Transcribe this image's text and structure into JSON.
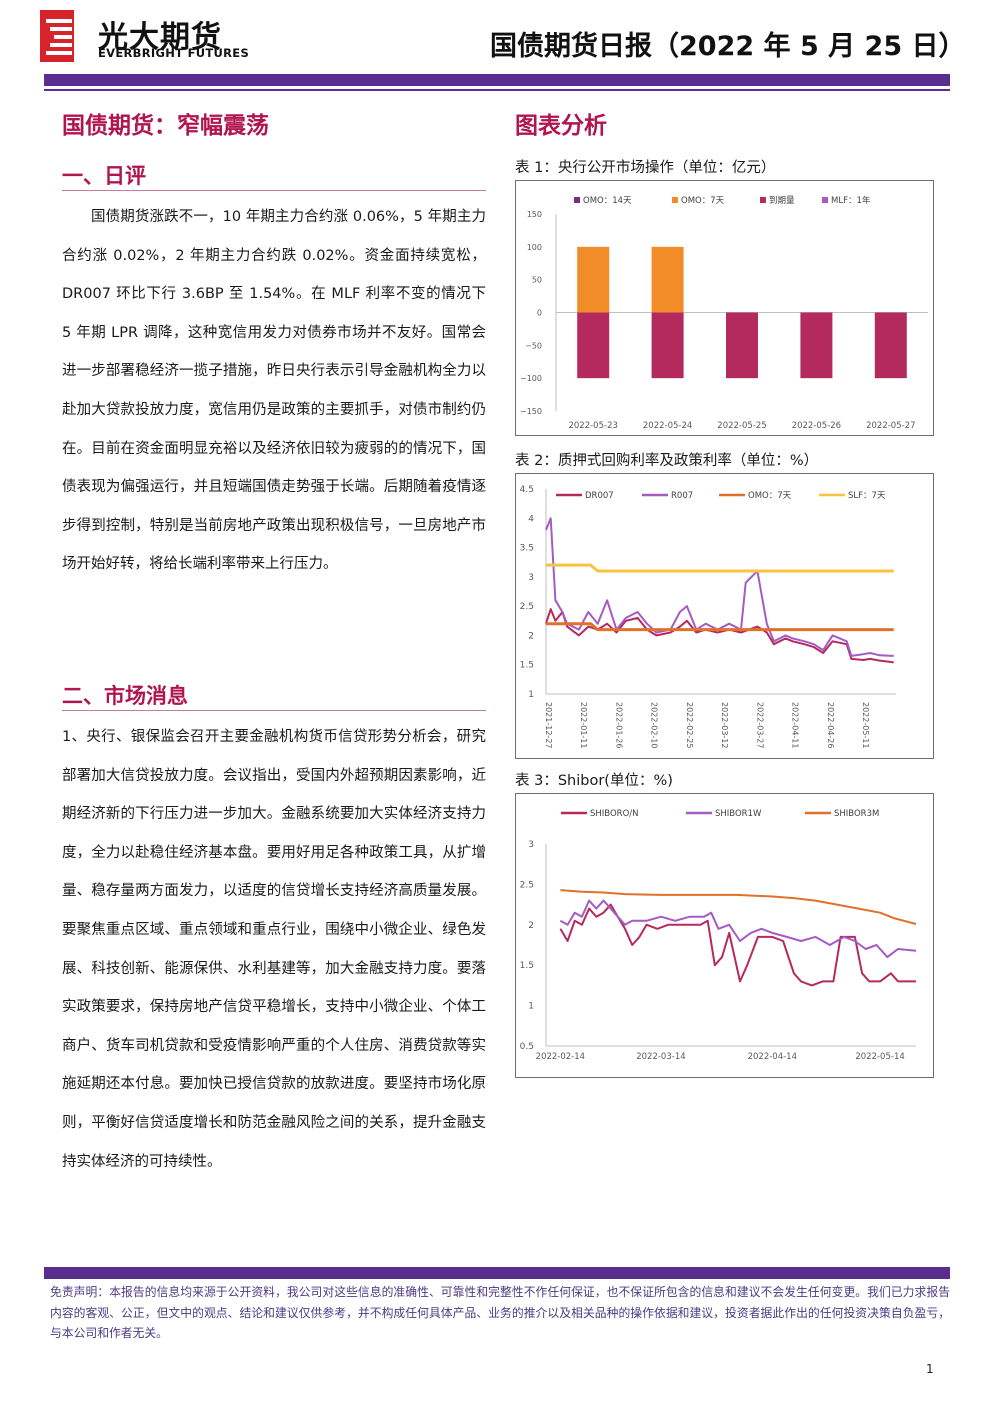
{
  "header": {
    "brand_cn": "光大期货",
    "brand_en": "EVERBRIGHT FUTURES",
    "report_title": "国债期货日报（2022 年 5 月 25 日）"
  },
  "main_title": "国债期货：窄幅震荡",
  "chart_section_title": "图表分析",
  "section1": {
    "heading": "一、日评",
    "body": "国债期货涨跌不一，10 年期主力合约涨 0.06%，5 年期主力合约涨 0.02%，2 年期主力合约跌 0.02%。资金面持续宽松，DR007 环比下行 3.6BP 至 1.54%。在 MLF 利率不变的情况下 5 年期 LPR 调降，这种宽信用发力对债券市场并不友好。国常会进一步部署稳经济一揽子措施，昨日央行表示引导金融机构全力以赴加大贷款投放力度，宽信用仍是政策的主要抓手，对债市制约仍在。目前在资金面明显充裕以及经济依旧较为疲弱的的情况下，国债表现为偏强运行，并且短端国债走势强于长端。后期随着疫情逐步得到控制，特别是当前房地产政策出现积极信号，一旦房地产市场开始好转，将给长端利率带来上行压力。"
  },
  "section2": {
    "heading": "二、市场消息",
    "body": "1、央行、银保监会召开主要金融机构货币信贷形势分析会，研究部署加大信贷投放力度。会议指出，受国内外超预期因素影响，近期经济新的下行压力进一步加大。金融系统要加大实体经济支持力度，全力以赴稳住经济基本盘。要用好用足各种政策工具，从扩增量、稳存量两方面发力，以适度的信贷增长支持经济高质量发展。要聚焦重点区域、重点领域和重点行业，围绕中小微企业、绿色发展、科技创新、能源保供、水利基建等，加大金融支持力度。要落实政策要求，保持房地产信贷平稳增长，支持中小微企业、个体工商户、货车司机贷款和受疫情影响严重的个人住房、消费贷款等实施延期还本付息。要加快已授信贷款的放款进度。要坚持市场化原则，平衡好信贷适度增长和防范金融风险之间的关系，提升金融支持实体经济的可持续性。"
  },
  "footer": {
    "disclaimer": "免责声明：本报告的信息均来源于公开资料，我公司对这些信息的准确性、可靠性和完整性不作任何保证，也不保证所包含的信息和建议不会发生任何变更。我们已力求报告内容的客观、公正，但文中的观点、结论和建议仅供参考，并不构成任何具体产品、业务的推介以及相关品种的操作依据和建议，投资者据此作出的任何投资决策自负盈亏，与本公司和作者无关。",
    "page_number": "1"
  },
  "colors": {
    "brand_purple": "#5b2d8e",
    "heading_red": "#b0154d",
    "series_crimson": "#b52a5e",
    "series_orange": "#f28c28",
    "series_violet": "#a45bc4",
    "series_deep_purple": "#7a2d84",
    "series_amber": "#f8c340",
    "series_burnt_orange": "#e0702a"
  },
  "chart_data": [
    {
      "title": "表 1：央行公开市场操作（单位：亿元）",
      "type": "bar",
      "categories": [
        "2022-05-23",
        "2022-05-24",
        "2022-05-25",
        "2022-05-26",
        "2022-05-27"
      ],
      "ylim": [
        -150,
        150
      ],
      "yticks": [
        "150",
        "100",
        "50",
        "0",
        "−50",
        "−100",
        "−150"
      ],
      "legend_position": "top",
      "series": [
        {
          "name": "OMO：14天",
          "values": [
            0,
            0,
            0,
            0,
            0
          ]
        },
        {
          "name": "OMO：7天",
          "values": [
            100,
            100,
            0,
            0,
            0
          ]
        },
        {
          "name": "到期量",
          "values": [
            -100,
            -100,
            -100,
            -100,
            -100
          ]
        },
        {
          "name": "MLF：1年",
          "values": [
            0,
            0,
            0,
            0,
            0
          ]
        }
      ]
    },
    {
      "title": "表 2：质押式回购利率及政策利率（单位：%）",
      "type": "line",
      "ylim": [
        1,
        4.5
      ],
      "yticks": [
        "4.5",
        "4",
        "3.5",
        "3",
        "2.5",
        "2",
        "1.5",
        "1"
      ],
      "xticks": [
        "2021-12-27",
        "2022-01-11",
        "2022-01-26",
        "2022-02-10",
        "2022-02-25",
        "2022-03-12",
        "2022-03-27",
        "2022-04-11",
        "2022-04-26",
        "2022-05-11"
      ],
      "legend_position": "top",
      "series": [
        {
          "name": "DR007",
          "points": [
            [
              "2021-12-27",
              2.2
            ],
            [
              "2021-12-29",
              2.45
            ],
            [
              "2021-12-31",
              2.25
            ],
            [
              "2022-01-03",
              2.4
            ],
            [
              "2022-01-05",
              2.15
            ],
            [
              "2022-01-10",
              2.0
            ],
            [
              "2022-01-14",
              2.15
            ],
            [
              "2022-01-18",
              2.1
            ],
            [
              "2022-01-22",
              2.2
            ],
            [
              "2022-01-26",
              2.05
            ],
            [
              "2022-01-30",
              2.25
            ],
            [
              "2022-02-04",
              2.3
            ],
            [
              "2022-02-08",
              2.1
            ],
            [
              "2022-02-12",
              2.0
            ],
            [
              "2022-02-18",
              2.05
            ],
            [
              "2022-02-22",
              2.15
            ],
            [
              "2022-02-25",
              2.25
            ],
            [
              "2022-03-01",
              2.05
            ],
            [
              "2022-03-05",
              2.1
            ],
            [
              "2022-03-10",
              2.05
            ],
            [
              "2022-03-15",
              2.1
            ],
            [
              "2022-03-20",
              2.05
            ],
            [
              "2022-03-27",
              2.15
            ],
            [
              "2022-03-31",
              2.05
            ],
            [
              "2022-04-03",
              1.85
            ],
            [
              "2022-04-08",
              1.95
            ],
            [
              "2022-04-11",
              1.9
            ],
            [
              "2022-04-16",
              1.85
            ],
            [
              "2022-04-20",
              1.8
            ],
            [
              "2022-04-24",
              1.7
            ],
            [
              "2022-04-28",
              1.9
            ],
            [
              "2022-05-04",
              1.85
            ],
            [
              "2022-05-06",
              1.6
            ],
            [
              "2022-05-11",
              1.58
            ],
            [
              "2022-05-14",
              1.6
            ],
            [
              "2022-05-18",
              1.57
            ],
            [
              "2022-05-24",
              1.54
            ]
          ]
        },
        {
          "name": "R007",
          "points": [
            [
              "2021-12-27",
              3.8
            ],
            [
              "2021-12-29",
              4.0
            ],
            [
              "2021-12-31",
              2.6
            ],
            [
              "2022-01-03",
              2.4
            ],
            [
              "2022-01-05",
              2.2
            ],
            [
              "2022-01-10",
              2.1
            ],
            [
              "2022-01-14",
              2.4
            ],
            [
              "2022-01-18",
              2.2
            ],
            [
              "2022-01-22",
              2.6
            ],
            [
              "2022-01-26",
              2.1
            ],
            [
              "2022-01-30",
              2.3
            ],
            [
              "2022-02-04",
              2.4
            ],
            [
              "2022-02-08",
              2.2
            ],
            [
              "2022-02-12",
              2.05
            ],
            [
              "2022-02-18",
              2.1
            ],
            [
              "2022-02-22",
              2.4
            ],
            [
              "2022-02-25",
              2.5
            ],
            [
              "2022-03-01",
              2.1
            ],
            [
              "2022-03-05",
              2.2
            ],
            [
              "2022-03-10",
              2.1
            ],
            [
              "2022-03-15",
              2.2
            ],
            [
              "2022-03-20",
              2.1
            ],
            [
              "2022-03-22",
              2.9
            ],
            [
              "2022-03-27",
              3.1
            ],
            [
              "2022-03-31",
              2.2
            ],
            [
              "2022-04-03",
              1.9
            ],
            [
              "2022-04-08",
              2.0
            ],
            [
              "2022-04-11",
              1.95
            ],
            [
              "2022-04-16",
              1.9
            ],
            [
              "2022-04-20",
              1.85
            ],
            [
              "2022-04-24",
              1.75
            ],
            [
              "2022-04-28",
              2.0
            ],
            [
              "2022-05-04",
              1.9
            ],
            [
              "2022-05-06",
              1.65
            ],
            [
              "2022-05-11",
              1.68
            ],
            [
              "2022-05-14",
              1.7
            ],
            [
              "2022-05-18",
              1.66
            ],
            [
              "2022-05-24",
              1.65
            ]
          ]
        },
        {
          "name": "OMO：7天",
          "points": [
            [
              "2021-12-27",
              2.2
            ],
            [
              "2022-01-15",
              2.2
            ],
            [
              "2022-01-18",
              2.1
            ],
            [
              "2022-05-24",
              2.1
            ]
          ]
        },
        {
          "name": "SLF：7天",
          "points": [
            [
              "2021-12-27",
              3.2
            ],
            [
              "2022-01-15",
              3.2
            ],
            [
              "2022-01-18",
              3.1
            ],
            [
              "2022-05-24",
              3.1
            ]
          ]
        }
      ]
    },
    {
      "title": "表 3：Shibor(单位：%)",
      "type": "line",
      "ylim": [
        0.5,
        3
      ],
      "yticks": [
        "3",
        "2.5",
        "2",
        "1.5",
        "1",
        "0.5"
      ],
      "xticks": [
        "2022-02-14",
        "2022-03-14",
        "2022-04-14",
        "2022-05-14"
      ],
      "legend_position": "top",
      "series": [
        {
          "name": "SHIBORO/N",
          "points": [
            [
              "2022-02-14",
              1.95
            ],
            [
              "2022-02-16",
              1.8
            ],
            [
              "2022-02-18",
              2.05
            ],
            [
              "2022-02-20",
              2.0
            ],
            [
              "2022-02-22",
              2.2
            ],
            [
              "2022-02-24",
              2.1
            ],
            [
              "2022-02-26",
              2.15
            ],
            [
              "2022-02-28",
              2.25
            ],
            [
              "2022-03-02",
              2.1
            ],
            [
              "2022-03-04",
              1.95
            ],
            [
              "2022-03-06",
              1.75
            ],
            [
              "2022-03-08",
              1.85
            ],
            [
              "2022-03-10",
              2.0
            ],
            [
              "2022-03-13",
              1.95
            ],
            [
              "2022-03-16",
              2.0
            ],
            [
              "2022-03-20",
              2.0
            ],
            [
              "2022-03-25",
              2.0
            ],
            [
              "2022-03-27",
              2.05
            ],
            [
              "2022-03-29",
              1.5
            ],
            [
              "2022-03-31",
              1.6
            ],
            [
              "2022-04-02",
              1.9
            ],
            [
              "2022-04-05",
              1.3
            ],
            [
              "2022-04-07",
              1.5
            ],
            [
              "2022-04-10",
              1.85
            ],
            [
              "2022-04-14",
              1.85
            ],
            [
              "2022-04-17",
              1.8
            ],
            [
              "2022-04-20",
              1.4
            ],
            [
              "2022-04-22",
              1.3
            ],
            [
              "2022-04-25",
              1.25
            ],
            [
              "2022-04-28",
              1.3
            ],
            [
              "2022-05-01",
              1.3
            ],
            [
              "2022-05-03",
              1.85
            ],
            [
              "2022-05-07",
              1.85
            ],
            [
              "2022-05-09",
              1.4
            ],
            [
              "2022-05-11",
              1.3
            ],
            [
              "2022-05-14",
              1.3
            ],
            [
              "2022-05-17",
              1.4
            ],
            [
              "2022-05-19",
              1.3
            ],
            [
              "2022-05-24",
              1.3
            ]
          ]
        },
        {
          "name": "SHIBOR1W",
          "points": [
            [
              "2022-02-14",
              2.05
            ],
            [
              "2022-02-16",
              2.0
            ],
            [
              "2022-02-18",
              2.15
            ],
            [
              "2022-02-20",
              2.1
            ],
            [
              "2022-02-22",
              2.3
            ],
            [
              "2022-02-24",
              2.2
            ],
            [
              "2022-02-26",
              2.3
            ],
            [
              "2022-02-28",
              2.2
            ],
            [
              "2022-03-02",
              2.1
            ],
            [
              "2022-03-04",
              2.0
            ],
            [
              "2022-03-06",
              2.05
            ],
            [
              "2022-03-10",
              2.05
            ],
            [
              "2022-03-14",
              2.1
            ],
            [
              "2022-03-18",
              2.05
            ],
            [
              "2022-03-22",
              2.1
            ],
            [
              "2022-03-26",
              2.1
            ],
            [
              "2022-03-28",
              2.15
            ],
            [
              "2022-03-30",
              1.95
            ],
            [
              "2022-04-02",
              2.0
            ],
            [
              "2022-04-05",
              1.8
            ],
            [
              "2022-04-08",
              1.9
            ],
            [
              "2022-04-11",
              1.95
            ],
            [
              "2022-04-14",
              1.9
            ],
            [
              "2022-04-18",
              1.85
            ],
            [
              "2022-04-22",
              1.8
            ],
            [
              "2022-04-26",
              1.85
            ],
            [
              "2022-04-30",
              1.75
            ],
            [
              "2022-05-04",
              1.85
            ],
            [
              "2022-05-07",
              1.8
            ],
            [
              "2022-05-10",
              1.7
            ],
            [
              "2022-05-13",
              1.75
            ],
            [
              "2022-05-16",
              1.6
            ],
            [
              "2022-05-19",
              1.7
            ],
            [
              "2022-05-24",
              1.68
            ]
          ]
        },
        {
          "name": "SHIBOR3M",
          "points": [
            [
              "2022-02-14",
              2.43
            ],
            [
              "2022-02-20",
              2.41
            ],
            [
              "2022-02-26",
              2.4
            ],
            [
              "2022-03-04",
              2.38
            ],
            [
              "2022-03-14",
              2.37
            ],
            [
              "2022-03-24",
              2.37
            ],
            [
              "2022-04-04",
              2.37
            ],
            [
              "2022-04-14",
              2.35
            ],
            [
              "2022-04-20",
              2.33
            ],
            [
              "2022-04-26",
              2.3
            ],
            [
              "2022-05-02",
              2.25
            ],
            [
              "2022-05-08",
              2.2
            ],
            [
              "2022-05-14",
              2.15
            ],
            [
              "2022-05-18",
              2.08
            ],
            [
              "2022-05-24",
              2.01
            ]
          ]
        }
      ]
    }
  ]
}
